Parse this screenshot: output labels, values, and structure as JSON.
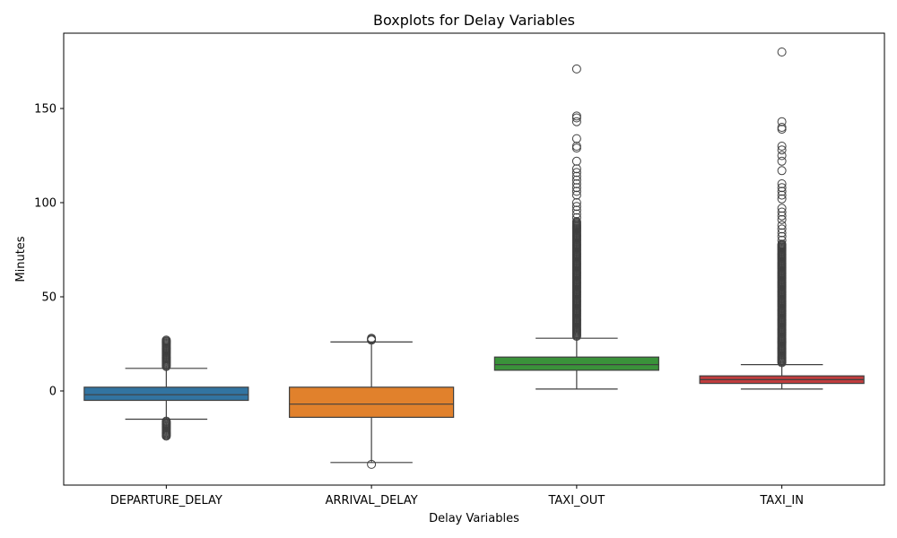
{
  "chart_data": {
    "type": "boxplot",
    "title": "Boxplots for Delay Variables",
    "xlabel": "Delay Variables",
    "ylabel": "Minutes",
    "ylim": [
      -50,
      190
    ],
    "yticks": [
      0,
      50,
      100,
      150
    ],
    "grid": false,
    "series": [
      {
        "name": "DEPARTURE_DELAY",
        "color": "#3274a1",
        "q1": -5,
        "median": -2,
        "q3": 2,
        "whisker_low": -15,
        "whisker_high": 12,
        "outlier_ranges": [
          [
            13,
            27
          ],
          [
            -24,
            -16
          ]
        ],
        "outliers": []
      },
      {
        "name": "ARRIVAL_DELAY",
        "color": "#e1812c",
        "q1": -14,
        "median": -7,
        "q3": 2,
        "whisker_low": -38,
        "whisker_high": 26,
        "outlier_ranges": [
          [
            27,
            28
          ],
          [
            -39,
            -39
          ]
        ],
        "outliers": []
      },
      {
        "name": "TAXI_OUT",
        "color": "#3a923a",
        "q1": 11,
        "median": 14,
        "q3": 18,
        "whisker_low": 1,
        "whisker_high": 28,
        "outlier_ranges": [
          [
            29,
            90
          ]
        ],
        "outliers": [
          92,
          94,
          96,
          98,
          100,
          104,
          106,
          108,
          110,
          112,
          114,
          116,
          118,
          122,
          129,
          130,
          134,
          143,
          145,
          146,
          171
        ]
      },
      {
        "name": "TAXI_IN",
        "color": "#c03d3e",
        "q1": 4,
        "median": 6,
        "q3": 8,
        "whisker_low": 1,
        "whisker_high": 14,
        "outlier_ranges": [
          [
            15,
            78
          ]
        ],
        "outliers": [
          80,
          82,
          84,
          86,
          88,
          91,
          93,
          95,
          97,
          102,
          104,
          106,
          108,
          110,
          117,
          122,
          125,
          128,
          130,
          139,
          140,
          143,
          180
        ]
      }
    ]
  }
}
